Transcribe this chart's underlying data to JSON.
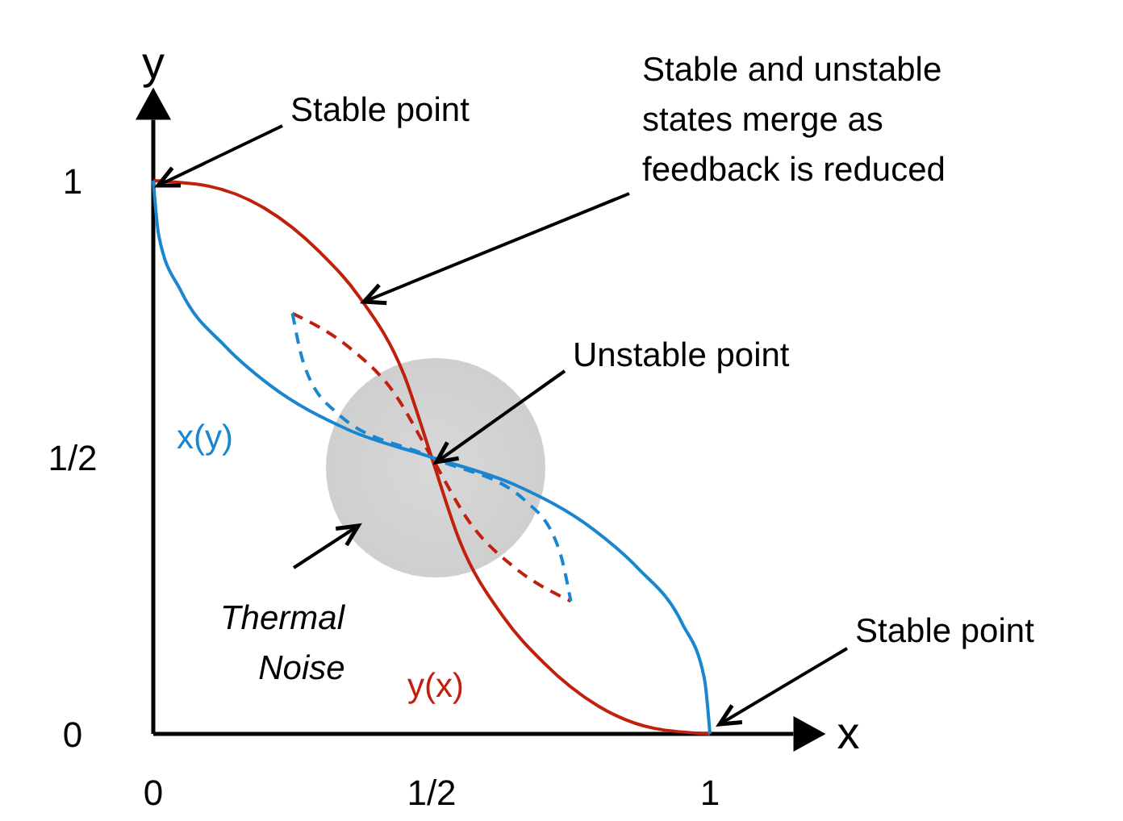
{
  "chart_data": {
    "type": "line",
    "xlabel": "x",
    "ylabel": "y",
    "xlim": [
      0,
      1.15
    ],
    "ylim": [
      0,
      1.11
    ],
    "xticks": [
      0,
      {
        "value": 0.5,
        "label": "1/2"
      },
      1
    ],
    "yticks": [
      0,
      {
        "value": 0.5,
        "label": "1/2"
      },
      1
    ],
    "grid": false,
    "series": [
      {
        "name": "y(x)",
        "color": "#c0200e",
        "line_style": "solid",
        "x": [
          0,
          0.1,
          0.2,
          0.3,
          0.37,
          0.45,
          0.5,
          0.55,
          0.63,
          0.7,
          0.8,
          0.9,
          1
        ],
        "values": [
          1,
          0.99,
          0.95,
          0.87,
          0.79,
          0.65,
          0.5,
          0.35,
          0.21,
          0.13,
          0.05,
          0.01,
          0
        ]
      },
      {
        "name": "x(y)",
        "color": "#1a86cf",
        "line_style": "solid",
        "x": [
          0,
          0.01,
          0.05,
          0.13,
          0.21,
          0.35,
          0.5,
          0.65,
          0.79,
          0.87,
          0.95,
          0.99,
          1
        ],
        "values": [
          1,
          0.9,
          0.8,
          0.7,
          0.63,
          0.55,
          0.5,
          0.45,
          0.37,
          0.3,
          0.2,
          0.1,
          0
        ]
      },
      {
        "color": "#c0200e",
        "line_style": "dashed",
        "x": [
          0.25,
          0.35,
          0.43,
          0.5,
          0.57,
          0.65,
          0.75
        ],
        "values": [
          0.76,
          0.7,
          0.62,
          0.5,
          0.38,
          0.3,
          0.24
        ]
      },
      {
        "color": "#1a86cf",
        "line_style": "dashed",
        "x": [
          0.25,
          0.27,
          0.33,
          0.5,
          0.67,
          0.73,
          0.75
        ],
        "values": [
          0.76,
          0.67,
          0.58,
          0.5,
          0.42,
          0.33,
          0.24
        ]
      }
    ],
    "annotations": [
      {
        "text": "Stable point",
        "x": 0,
        "y": 1
      },
      {
        "text": "Stable and unstable states merge as feedback is reduced",
        "x": 0.37,
        "y": 0.79
      },
      {
        "text": "Unstable point",
        "x": 0.5,
        "y": 0.5
      },
      "Thermal Noise",
      {
        "text": "Stable point",
        "x": 1,
        "y": 0
      }
    ]
  }
}
